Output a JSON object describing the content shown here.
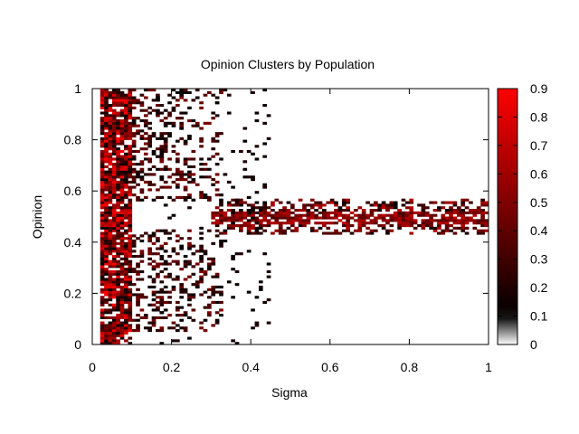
{
  "chart_data": {
    "type": "heatmap",
    "title": "Opinion Clusters by Population",
    "xlabel": "Sigma",
    "ylabel": "Opinion",
    "xlim": [
      0,
      1
    ],
    "ylim": [
      0,
      1
    ],
    "x_ticks": [
      "0",
      "0.2",
      "0.4",
      "0.6",
      "0.8",
      "1"
    ],
    "y_ticks": [
      "0",
      "0.2",
      "0.4",
      "0.6",
      "0.8",
      "1"
    ],
    "colorbar": {
      "range": [
        0,
        0.9
      ],
      "ticks": [
        "0",
        "0.1",
        "0.2",
        "0.3",
        "0.4",
        "0.5",
        "0.6",
        "0.7",
        "0.8",
        "0.9"
      ],
      "colors": [
        "#ffffff",
        "#000000",
        "#ff0000"
      ]
    },
    "grid": false,
    "cell_width": 0.01,
    "cell_height": 0.01,
    "regions": [
      {
        "description": "dense mixed cells",
        "x": [
          0.02,
          0.1
        ],
        "y": [
          0.0,
          1.0
        ],
        "value_range": [
          0.1,
          0.9
        ]
      },
      {
        "description": "scattered upper fan",
        "x": [
          0.1,
          0.33
        ],
        "y": [
          0.55,
          1.0
        ],
        "value_range": [
          0.1,
          0.5
        ]
      },
      {
        "description": "scattered lower fan",
        "x": [
          0.1,
          0.33
        ],
        "y": [
          0.05,
          0.45
        ],
        "value_range": [
          0.1,
          0.5
        ]
      },
      {
        "description": "central consensus band",
        "x": [
          0.3,
          1.0
        ],
        "y": [
          0.43,
          0.57
        ],
        "value_range": [
          0.1,
          0.7
        ]
      },
      {
        "description": "sparse outliers",
        "x": [
          0.15,
          0.45
        ],
        "y": [
          0.0,
          1.0
        ],
        "value_range": [
          0.1,
          0.2
        ]
      }
    ]
  }
}
